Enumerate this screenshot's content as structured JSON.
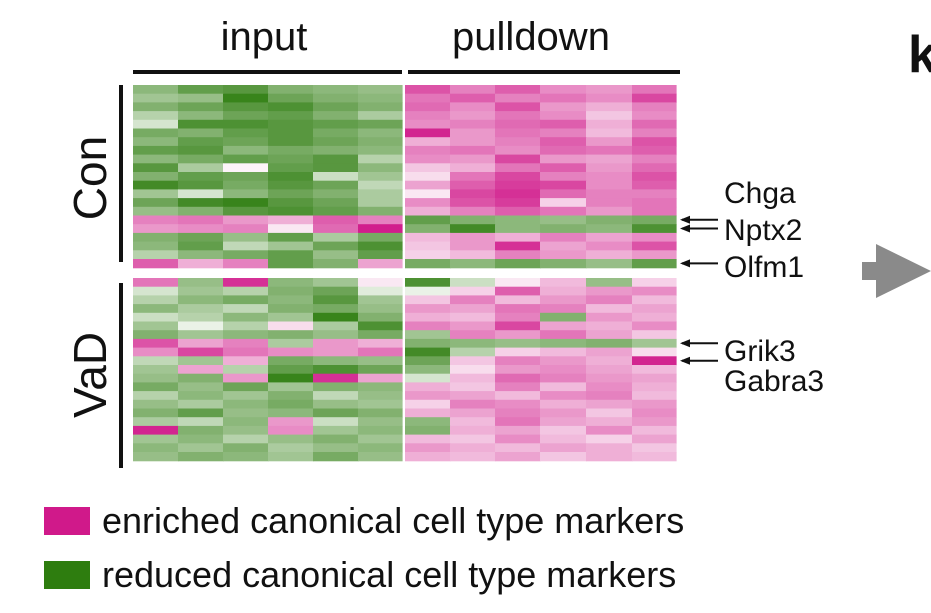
{
  "chart_data": {
    "type": "heatmap",
    "column_groups": [
      {
        "label": "input",
        "columns": 6
      },
      {
        "label": "pulldown",
        "columns": 6
      }
    ],
    "row_groups": [
      {
        "label": "Con",
        "rows": 21
      },
      {
        "label": "VaD",
        "rows": 21
      }
    ],
    "color_scale": {
      "low": "#2e7d0f",
      "mid": "#ffffff",
      "high": "#d0198a"
    },
    "values": [
      [
        -0.55,
        -0.75,
        -0.8,
        -0.6,
        -0.55,
        -0.5,
        0.75,
        0.55,
        0.7,
        0.5,
        0.45,
        0.6
      ],
      [
        -0.45,
        -0.5,
        -0.95,
        -0.7,
        -0.6,
        -0.55,
        0.6,
        0.7,
        0.55,
        0.6,
        0.5,
        0.8
      ],
      [
        -0.6,
        -0.7,
        -0.8,
        -0.85,
        -0.7,
        -0.6,
        0.65,
        0.5,
        0.75,
        0.45,
        0.35,
        0.55
      ],
      [
        -0.35,
        -0.55,
        -0.7,
        -0.75,
        -0.6,
        -0.4,
        0.55,
        0.45,
        0.6,
        0.5,
        0.25,
        0.5
      ],
      [
        -0.2,
        -0.85,
        -0.85,
        -0.8,
        -0.75,
        -0.7,
        0.5,
        0.55,
        0.65,
        0.7,
        0.35,
        0.65
      ],
      [
        -0.65,
        -0.6,
        -0.75,
        -0.8,
        -0.65,
        -0.55,
        0.95,
        0.45,
        0.6,
        0.55,
        0.3,
        0.55
      ],
      [
        -0.55,
        -0.75,
        -0.7,
        -0.8,
        -0.7,
        -0.6,
        0.35,
        0.45,
        0.55,
        0.7,
        0.45,
        0.75
      ],
      [
        -0.75,
        -0.8,
        -0.55,
        -0.65,
        -0.6,
        -0.55,
        0.55,
        0.6,
        0.5,
        0.65,
        0.6,
        0.7
      ],
      [
        -0.55,
        -0.65,
        -0.75,
        -0.7,
        -0.8,
        -0.35,
        0.5,
        0.45,
        0.8,
        0.45,
        0.4,
        0.55
      ],
      [
        -0.8,
        -0.4,
        0.05,
        -0.75,
        -0.8,
        -0.55,
        0.25,
        0.35,
        0.6,
        0.7,
        0.45,
        0.65
      ],
      [
        -0.6,
        -0.75,
        -0.7,
        -0.85,
        -0.25,
        -0.45,
        0.15,
        0.6,
        0.8,
        0.55,
        0.5,
        0.75
      ],
      [
        -0.9,
        -0.8,
        -0.65,
        -0.8,
        -0.7,
        -0.3,
        0.4,
        0.7,
        0.85,
        0.8,
        0.5,
        0.7
      ],
      [
        -0.45,
        -0.2,
        -0.55,
        -0.7,
        -0.6,
        -0.4,
        0.1,
        0.8,
        0.9,
        0.65,
        0.55,
        0.55
      ],
      [
        -0.7,
        -0.9,
        -0.95,
        -0.8,
        -0.7,
        -0.4,
        0.5,
        0.75,
        0.85,
        0.2,
        0.55,
        0.6
      ],
      [
        -0.5,
        -0.6,
        -0.8,
        -0.85,
        -0.75,
        -0.6,
        0.35,
        0.55,
        0.7,
        0.6,
        0.45,
        0.6
      ],
      [
        0.55,
        0.6,
        0.45,
        0.35,
        0.7,
        0.55,
        -0.75,
        -0.6,
        -0.55,
        -0.5,
        -0.6,
        -0.65
      ],
      [
        0.45,
        0.5,
        0.55,
        0.1,
        0.65,
        0.98,
        -0.6,
        -0.9,
        -0.55,
        -0.6,
        -0.55,
        -0.85
      ],
      [
        -0.6,
        -0.7,
        -0.5,
        -0.75,
        -0.4,
        -0.65,
        0.3,
        0.45,
        0.35,
        0.55,
        0.4,
        0.5
      ],
      [
        -0.55,
        -0.75,
        -0.3,
        -0.45,
        -0.7,
        -0.85,
        0.25,
        0.45,
        0.9,
        0.4,
        0.5,
        0.75
      ],
      [
        -0.35,
        -0.55,
        -0.65,
        -0.75,
        -0.5,
        -0.75,
        0.2,
        0.3,
        0.55,
        0.45,
        0.35,
        0.45
      ],
      [
        0.7,
        0.35,
        0.55,
        -0.75,
        -0.6,
        0.4,
        -0.65,
        -0.55,
        -0.7,
        -0.6,
        -0.5,
        -0.75
      ],
      [
        0.6,
        -0.5,
        0.9,
        -0.55,
        -0.45,
        0.1,
        -0.85,
        -0.25,
        0.1,
        0.3,
        -0.5,
        0.2
      ],
      [
        -0.2,
        -0.45,
        -0.35,
        -0.6,
        -0.7,
        -0.15,
        -0.1,
        0.2,
        0.7,
        0.35,
        0.45,
        0.5
      ],
      [
        -0.35,
        -0.55,
        -0.65,
        -0.55,
        -0.8,
        -0.45,
        0.25,
        0.55,
        0.3,
        0.45,
        0.55,
        0.3
      ],
      [
        -0.55,
        -0.4,
        -0.3,
        -0.6,
        -0.65,
        -0.5,
        0.45,
        0.4,
        0.6,
        0.55,
        0.3,
        0.4
      ],
      [
        -0.25,
        -0.35,
        -0.55,
        -0.45,
        -0.95,
        -0.6,
        0.35,
        0.3,
        0.55,
        -0.6,
        0.45,
        0.35
      ],
      [
        -0.45,
        -0.1,
        -0.35,
        0.15,
        -0.4,
        -0.85,
        0.55,
        0.45,
        0.8,
        0.4,
        0.35,
        0.5
      ],
      [
        -0.6,
        -0.45,
        -0.55,
        -0.6,
        -0.5,
        -0.65,
        -0.45,
        0.55,
        0.45,
        0.6,
        0.4,
        0.25
      ],
      [
        0.75,
        0.4,
        0.55,
        -0.4,
        0.45,
        0.35,
        -0.6,
        -0.55,
        -0.5,
        -0.55,
        -0.6,
        -0.45
      ],
      [
        0.5,
        0.8,
        0.6,
        0.5,
        0.45,
        0.6,
        -0.9,
        -0.35,
        0.2,
        0.3,
        0.4,
        0.15
      ],
      [
        -0.3,
        -0.45,
        0.35,
        -0.65,
        -0.55,
        -0.5,
        -0.7,
        0.25,
        0.55,
        0.45,
        0.35,
        0.95
      ],
      [
        -0.45,
        0.4,
        -0.35,
        -0.75,
        -0.85,
        -0.7,
        -0.55,
        0.15,
        0.45,
        0.5,
        0.4,
        0.3
      ],
      [
        -0.5,
        -0.6,
        0.45,
        -0.95,
        0.9,
        0.4,
        -0.2,
        0.3,
        0.65,
        0.55,
        0.45,
        0.4
      ],
      [
        -0.65,
        -0.5,
        -0.7,
        -0.45,
        -0.6,
        -0.55,
        0.35,
        0.25,
        0.55,
        0.3,
        0.5,
        0.35
      ],
      [
        -0.35,
        -0.55,
        -0.45,
        -0.6,
        -0.3,
        -0.5,
        0.45,
        0.4,
        0.3,
        0.5,
        0.55,
        0.3
      ],
      [
        -0.5,
        -0.4,
        -0.55,
        -0.65,
        -0.5,
        -0.45,
        0.2,
        0.55,
        0.5,
        0.35,
        0.4,
        0.45
      ],
      [
        -0.6,
        -0.75,
        -0.5,
        -0.55,
        -0.7,
        -0.6,
        0.35,
        0.4,
        0.55,
        0.45,
        0.25,
        0.5
      ],
      [
        -0.4,
        -0.3,
        -0.55,
        0.45,
        -0.25,
        -0.5,
        -0.55,
        0.3,
        0.6,
        0.4,
        0.35,
        0.45
      ],
      [
        0.95,
        -0.6,
        -0.5,
        0.5,
        -0.45,
        -0.55,
        -0.6,
        0.35,
        0.4,
        0.25,
        0.5,
        0.3
      ],
      [
        -0.45,
        -0.55,
        -0.35,
        -0.5,
        -0.6,
        -0.45,
        0.3,
        0.25,
        0.5,
        0.3,
        0.2,
        0.4
      ],
      [
        -0.55,
        -0.45,
        -0.6,
        -0.4,
        -0.5,
        -0.55,
        0.45,
        0.35,
        0.3,
        0.4,
        0.35,
        0.25
      ],
      [
        -0.5,
        -0.6,
        -0.55,
        -0.45,
        -0.65,
        -0.5,
        0.35,
        0.3,
        0.4,
        0.25,
        0.35,
        0.3
      ]
    ],
    "gene_annotations": [
      {
        "label": "Chga",
        "row": 15
      },
      {
        "label": "Nptx2",
        "row": 16
      },
      {
        "label": "Olfm1",
        "row": 20
      },
      {
        "label": "Grik3",
        "row": 28
      },
      {
        "label": "Gabra3",
        "row": 30
      }
    ],
    "legend": [
      {
        "label": "enriched canonical cell type markers",
        "color": "#d0198a"
      },
      {
        "label": "reduced canonical cell type markers",
        "color": "#2e7d0f"
      }
    ],
    "legend_placement": "bottom-left",
    "panel_letter": "k",
    "arrow_color": "#8a8a8a"
  }
}
